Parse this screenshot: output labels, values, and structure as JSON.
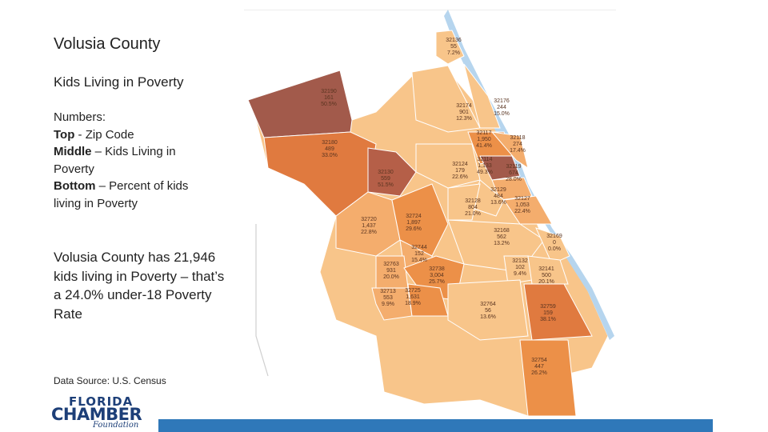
{
  "title": "Volusia County",
  "subtitle": "Kids Living in Poverty",
  "legend": {
    "heading": "Numbers:",
    "top_label": "Top",
    "top_text": " - Zip Code",
    "middle_label": "Middle",
    "middle_text": " – Kids Living in Poverty",
    "bottom_label": "Bottom",
    "bottom_text": " – Percent of kids living in Poverty"
  },
  "summary": "Volusia County has 21,946 kids living in Poverty – that’s a 24.0% under-18 Poverty Rate",
  "source": "Data Source:  U.S. Census",
  "logo": {
    "line1": "FLORIDA",
    "line2": "CHAMBER",
    "line3": "Foundation"
  },
  "colors": {
    "accent_bar": "#2f78b9",
    "water": "#b6d5ee",
    "lightest": "#f8c58a",
    "light": "#f4ad6d",
    "medium": "#ec9048",
    "dark": "#e07a3f",
    "darkest": "#a25a4b"
  },
  "zip_labels": [
    {
      "zip": "32136",
      "kids": "55",
      "pct": "7.2%"
    },
    {
      "zip": "32190",
      "kids": "161",
      "pct": "50.5%"
    },
    {
      "zip": "32174",
      "kids": "901",
      "pct": "12.3%"
    },
    {
      "zip": "32176",
      "kids": "244",
      "pct": "15.0%"
    },
    {
      "zip": "32117",
      "kids": "1,950",
      "pct": "41.4%"
    },
    {
      "zip": "32118",
      "kids": "274",
      "pct": "17.4%"
    },
    {
      "zip": "32180",
      "kids": "489",
      "pct": "33.0%"
    },
    {
      "zip": "32114",
      "kids": "1,133",
      "pct": "49.3%"
    },
    {
      "zip": "32119",
      "kids": "674",
      "pct": "28.0%"
    },
    {
      "zip": "32124",
      "kids": "179",
      "pct": "22.6%"
    },
    {
      "zip": "32130",
      "kids": "559",
      "pct": "51.5%"
    },
    {
      "zip": "32129",
      "kids": "484",
      "pct": "13.6%"
    },
    {
      "zip": "32127",
      "kids": "1,053",
      "pct": "22.4%"
    },
    {
      "zip": "32128",
      "kids": "804",
      "pct": "21.0%"
    },
    {
      "zip": "32720",
      "kids": "1,437",
      "pct": "22.8%"
    },
    {
      "zip": "32724",
      "kids": "1,897",
      "pct": "29.6%"
    },
    {
      "zip": "32168",
      "kids": "562",
      "pct": "13.2%"
    },
    {
      "zip": "32169",
      "kids": "0",
      "pct": "0.0%"
    },
    {
      "zip": "32744",
      "kids": "152",
      "pct": "15.4%"
    },
    {
      "zip": "32763",
      "kids": "931",
      "pct": "20.0%"
    },
    {
      "zip": "32738",
      "kids": "3,004",
      "pct": "25.7%"
    },
    {
      "zip": "32132",
      "kids": "102",
      "pct": "9.4%"
    },
    {
      "zip": "32141",
      "kids": "500",
      "pct": "20.1%"
    },
    {
      "zip": "32713",
      "kids": "553",
      "pct": "9.9%"
    },
    {
      "zip": "32725",
      "kids": "1,631",
      "pct": "18.9%"
    },
    {
      "zip": "32764",
      "kids": "56",
      "pct": "13.6%"
    },
    {
      "zip": "32759",
      "kids": "159",
      "pct": "38.1%"
    },
    {
      "zip": "32754",
      "kids": "447",
      "pct": "26.2%"
    }
  ]
}
